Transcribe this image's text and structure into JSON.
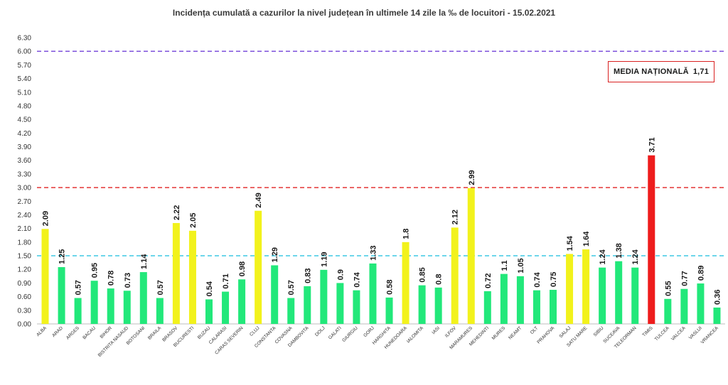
{
  "chart_data": {
    "type": "bar",
    "title": "Incidența cumulată a cazurilor la nivel județean în ultimele 14 zile la ‰ de locuitori - 15.02.2021",
    "ylim": [
      0,
      6.3
    ],
    "yticks": [
      "0.00",
      "0.30",
      "0.60",
      "0.90",
      "1.20",
      "1.50",
      "1.80",
      "2.10",
      "2.40",
      "2.70",
      "3.00",
      "3.30",
      "3.60",
      "3.90",
      "4.20",
      "4.50",
      "4.80",
      "5.10",
      "5.40",
      "5.70",
      "6.00",
      "6.30"
    ],
    "grid": false,
    "categories": [
      "ALBA",
      "ARAD",
      "ARGES",
      "BACAU",
      "BIHOR",
      "BISTRITA NASAUD",
      "BOTOSANI",
      "BRAILA",
      "BRASOV",
      "BUCURESTI",
      "BUZAU",
      "CALARASI",
      "CARAS SEVERIN",
      "CLUJ",
      "CONSTANTA",
      "COVASNA",
      "DAMBOVITA",
      "DOLJ",
      "GALATI",
      "GIURGIU",
      "GORJ",
      "HARGHITA",
      "HUNEDOARA",
      "IALOMITA",
      "IASI",
      "ILFOV",
      "MARAMURES",
      "MEHEDINTI",
      "MURES",
      "NEAMT",
      "OLT",
      "PRAHOVA",
      "SALAJ",
      "SATU MARE",
      "SIBIU",
      "SUCEAVA",
      "TELEORMAN",
      "TIMIS",
      "TULCEA",
      "VALCEA",
      "VASLUI",
      "VRANCEA"
    ],
    "values": [
      2.09,
      1.25,
      0.57,
      0.95,
      0.78,
      0.73,
      1.14,
      0.57,
      2.22,
      2.05,
      0.54,
      0.71,
      0.98,
      2.49,
      1.29,
      0.57,
      0.83,
      1.19,
      0.9,
      0.74,
      1.33,
      0.58,
      1.8,
      0.85,
      0.8,
      2.12,
      2.99,
      0.72,
      1.1,
      1.05,
      0.74,
      0.75,
      1.54,
      1.64,
      1.24,
      1.38,
      1.24,
      3.71,
      0.55,
      0.77,
      0.89,
      0.36
    ],
    "value_labels": [
      "2.09",
      "1.25",
      "0.57",
      "0.95",
      "0.78",
      "0.73",
      "1.14",
      "0.57",
      "2.22",
      "2.05",
      "0.54",
      "0.71",
      "0.98",
      "2.49",
      "1.29",
      "0.57",
      "0.83",
      "1.19",
      "0.9",
      "0.74",
      "1.33",
      "0.58",
      "1.8",
      "0.85",
      "0.8",
      "2.12",
      "2.99",
      "0.72",
      "1.1",
      "1.05",
      "0.74",
      "0.75",
      "1.54",
      "1.64",
      "1.24",
      "1.38",
      "1.24",
      "3.71",
      "0.55",
      "0.77",
      "0.89",
      "0.36"
    ],
    "colors": {
      "low": "#22e87a",
      "mid": "#f2f21c",
      "high": "#ee1c1c"
    },
    "thresholds": [
      {
        "value": 1.5,
        "color": "#2bc4e0"
      },
      {
        "value": 3.0,
        "color": "#e02020"
      },
      {
        "value": 6.0,
        "color": "#7040d8"
      }
    ],
    "annotation": {
      "label": "MEDIA NAȚIONALĂ",
      "value": "1,71"
    }
  }
}
